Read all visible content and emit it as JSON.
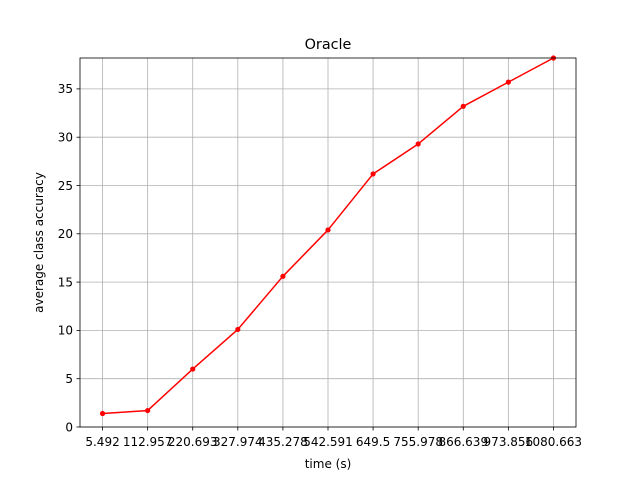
{
  "chart_data": {
    "type": "line",
    "title": "Oracle",
    "xlabel": "time (s)",
    "ylabel": "average class accuracy",
    "x_tick_labels": [
      "5.492",
      "112.957",
      "220.693",
      "327.974",
      "435.278",
      "542.591",
      "649.5",
      "755.978",
      "866.639",
      "973.856",
      "1080.663"
    ],
    "y_ticks": [
      0,
      5,
      10,
      15,
      20,
      25,
      30,
      35
    ],
    "ylim": [
      0,
      38.2
    ],
    "grid": true,
    "series": [
      {
        "color": "#ff0000",
        "marker": "dot",
        "values": [
          1.4,
          1.7,
          6.0,
          10.1,
          15.6,
          20.4,
          26.2,
          29.3,
          33.2,
          35.7,
          38.2
        ]
      }
    ]
  }
}
